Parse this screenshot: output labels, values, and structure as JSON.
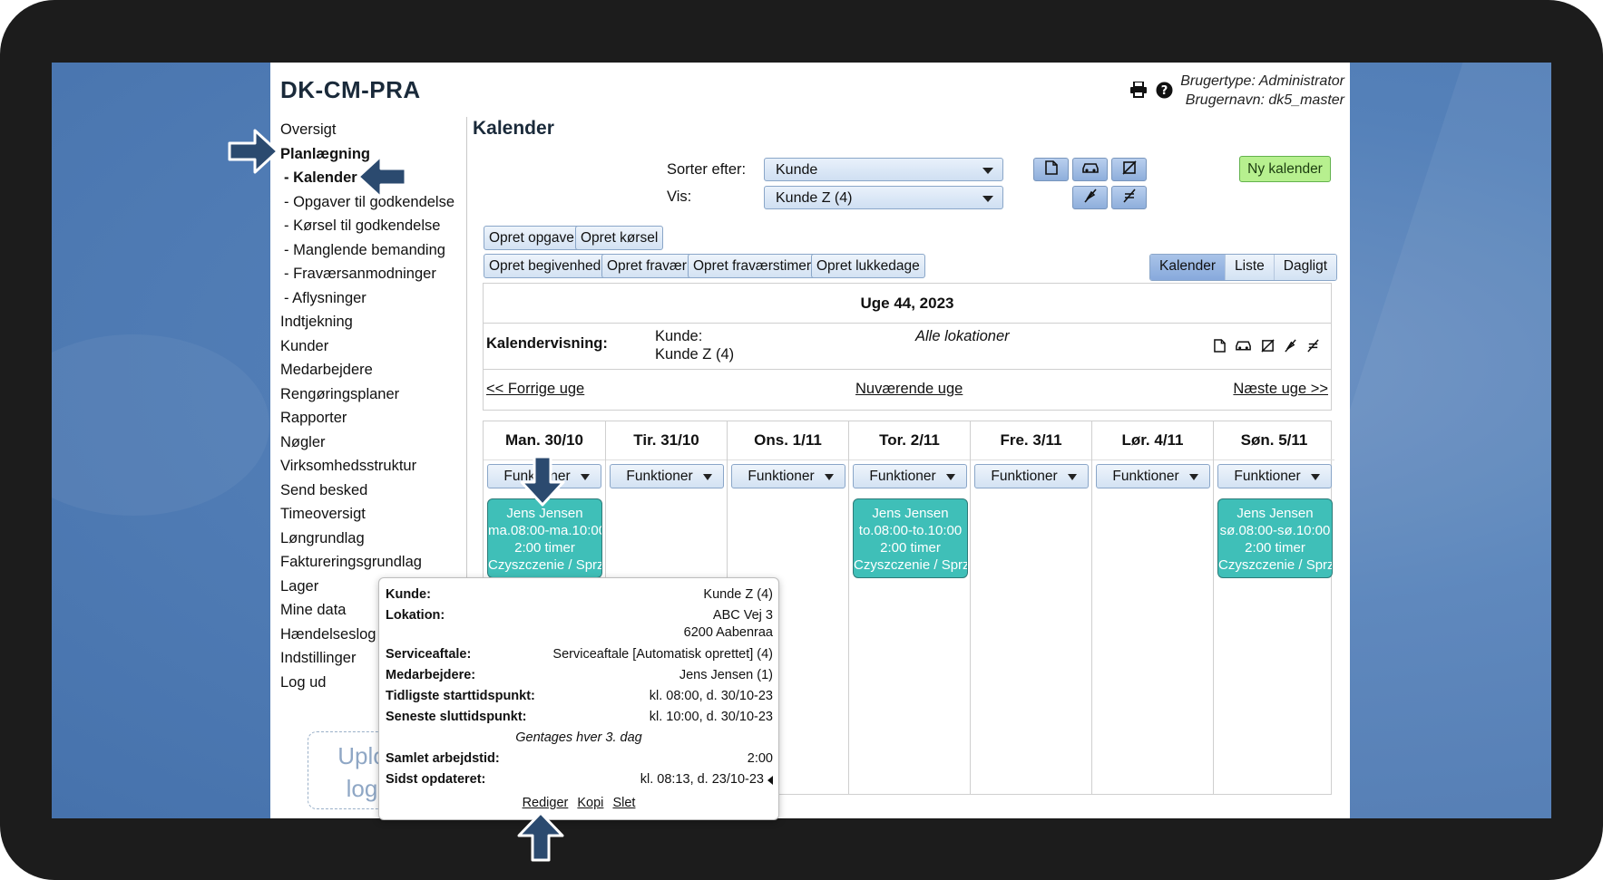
{
  "app": {
    "title": "DK-CM-PRA",
    "user_type": "Brugertype: Administrator",
    "user_name": "Brugernavn: dk5_master"
  },
  "header_icons": [
    "printer-icon",
    "help-icon"
  ],
  "sidebar": {
    "items": [
      {
        "label": "Oversigt",
        "bold": false,
        "sub": false
      },
      {
        "label": "Planlægning",
        "bold": true,
        "sub": false
      },
      {
        "label": "- Kalender",
        "bold": true,
        "sub": true
      },
      {
        "label": "- Opgaver til godkendelse",
        "bold": false,
        "sub": true
      },
      {
        "label": "- Kørsel til godkendelse",
        "bold": false,
        "sub": true
      },
      {
        "label": "- Manglende bemanding",
        "bold": false,
        "sub": true
      },
      {
        "label": "- Fraværsanmodninger",
        "bold": false,
        "sub": true
      },
      {
        "label": "- Aflysninger",
        "bold": false,
        "sub": true
      },
      {
        "label": "Indtjekning",
        "bold": false,
        "sub": false
      },
      {
        "label": "Kunder",
        "bold": false,
        "sub": false
      },
      {
        "label": "Medarbejdere",
        "bold": false,
        "sub": false
      },
      {
        "label": "Rengøringsplaner",
        "bold": false,
        "sub": false
      },
      {
        "label": "Rapporter",
        "bold": false,
        "sub": false
      },
      {
        "label": "Nøgler",
        "bold": false,
        "sub": false
      },
      {
        "label": "Virksomhedsstruktur",
        "bold": false,
        "sub": false
      },
      {
        "label": "Send besked",
        "bold": false,
        "sub": false
      },
      {
        "label": "Timeoversigt",
        "bold": false,
        "sub": false
      },
      {
        "label": "Løngrundlag",
        "bold": false,
        "sub": false
      },
      {
        "label": "Faktureringsgrundlag",
        "bold": false,
        "sub": false
      },
      {
        "label": "Lager",
        "bold": false,
        "sub": false
      },
      {
        "label": "Mine data",
        "bold": false,
        "sub": false
      },
      {
        "label": "Hændelseslog",
        "bold": false,
        "sub": false
      },
      {
        "label": "Indstillinger",
        "bold": false,
        "sub": false
      },
      {
        "label": "Log ud",
        "bold": false,
        "sub": false
      }
    ],
    "upload_line1": "Uplo",
    "upload_line2": "log"
  },
  "main": {
    "title": "Kalender",
    "sort_label": "Sorter efter:",
    "sort_value": "Kunde",
    "view_label": "Vis:",
    "view_value": "Kunde Z (4)",
    "new_calendar": "Ny kalender",
    "buttons_row1": [
      "Opret opgave",
      "Opret kørsel"
    ],
    "buttons_row2": [
      "Opret begivenhed",
      "Opret fravær",
      "Opret fraværstimer",
      "Opret lukkedage"
    ],
    "view_tabs": [
      "Kalender",
      "Liste",
      "Dagligt"
    ],
    "week_title": "Uge 44, 2023",
    "calendar_view_label": "Kalendervisning:",
    "customer_label": "Kunde:",
    "customer_value": "Kunde Z (4)",
    "locations": "Alle lokationer",
    "nav_prev": "<< Forrige uge",
    "nav_current": "Nuværende uge",
    "nav_next": "Næste uge >>",
    "functions_label": "Funktioner"
  },
  "days": [
    {
      "name": "Man. 30/10",
      "event": {
        "name": "Jens Jensen",
        "time": "ma.08:00-ma.10:00",
        "hours": "2:00 timer",
        "service": "Czyszczenie / Sprz"
      }
    },
    {
      "name": "Tir. 31/10",
      "event": null
    },
    {
      "name": "Ons. 1/11",
      "event": null
    },
    {
      "name": "Tor. 2/11",
      "event": {
        "name": "Jens Jensen",
        "time": "to.08:00-to.10:00",
        "hours": "2:00 timer",
        "service": "Czyszczenie / Sprz"
      }
    },
    {
      "name": "Fre. 3/11",
      "event": null
    },
    {
      "name": "Lør. 4/11",
      "event": null
    },
    {
      "name": "Søn. 5/11",
      "event": {
        "name": "Jens Jensen",
        "time": "sø.08:00-sø.10:00",
        "hours": "2:00 timer",
        "service": "Czyszczenie / Sprz"
      }
    }
  ],
  "popup": {
    "customer_label": "Kunde:",
    "customer_value": "Kunde Z (4)",
    "location_label": "Lokation:",
    "location_line1": "ABC Vej 3",
    "location_line2": "6200 Aabenraa",
    "service_label": "Serviceaftale:",
    "service_value": "Serviceaftale [Automatisk oprettet] (4)",
    "employees_label": "Medarbejdere:",
    "employees_value": "Jens Jensen (1)",
    "earliest_label": "Tidligste starttidspunkt:",
    "earliest_value": "kl. 08:00, d. 30/10-23",
    "latest_label": "Seneste sluttidspunkt:",
    "latest_value": "kl. 10:00, d. 30/10-23",
    "repeat": "Gentages hver 3. dag",
    "worktime_label": "Samlet arbejdstid:",
    "worktime_value": "2:00",
    "updated_label": "Sidst opdateret:",
    "updated_value": "kl. 08:13, d. 23/10-23",
    "link_edit": "Rediger",
    "link_copy": "Kopi",
    "link_delete": "Slet"
  },
  "colors": {
    "event": "#3fbfb8",
    "new_calendar_bg": "#b7f08f",
    "toolbar_button": "#8eaedb",
    "arrow": "#2b4a6f",
    "desktop": "#4f7bb5"
  }
}
